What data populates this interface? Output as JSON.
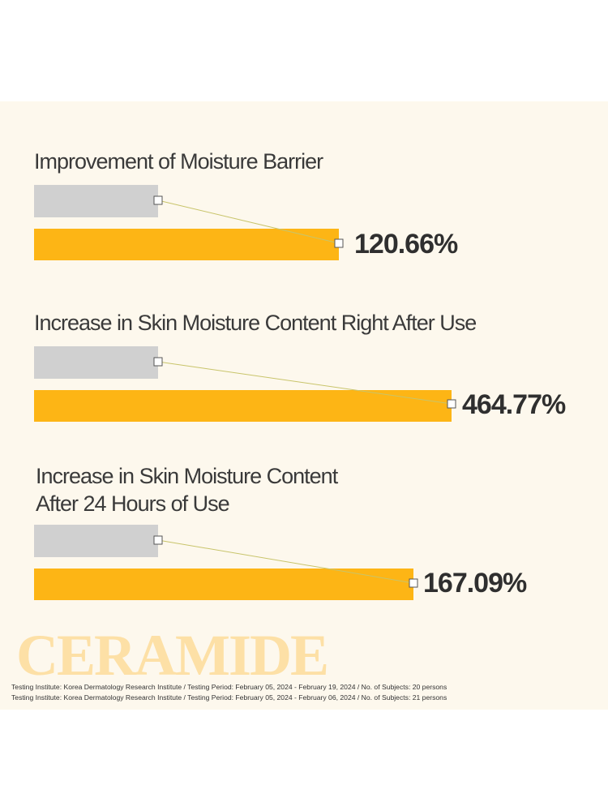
{
  "sections": [
    {
      "title": [
        "Improvement of Moisture Barrier"
      ],
      "value": "120.66%"
    },
    {
      "title": [
        "Increase in Skin Moisture Content Right After Use"
      ],
      "value": "464.77%"
    },
    {
      "title": [
        "Increase in Skin Moisture Content",
        "After 24 Hours of Use"
      ],
      "value": "167.09%"
    }
  ],
  "watermark": "CERAMIDE",
  "footnotes": [
    "Testing Institute: Korea Dermatology Research Institute / Testing Period: February 05, 2024 - February 19, 2024 / No. of Subjects: 20 persons",
    "Testing Institute: Korea Dermatology Research Institute / Testing Period: February 05, 2024 - February 06, 2024 / No. of Subjects: 21 persons"
  ]
}
